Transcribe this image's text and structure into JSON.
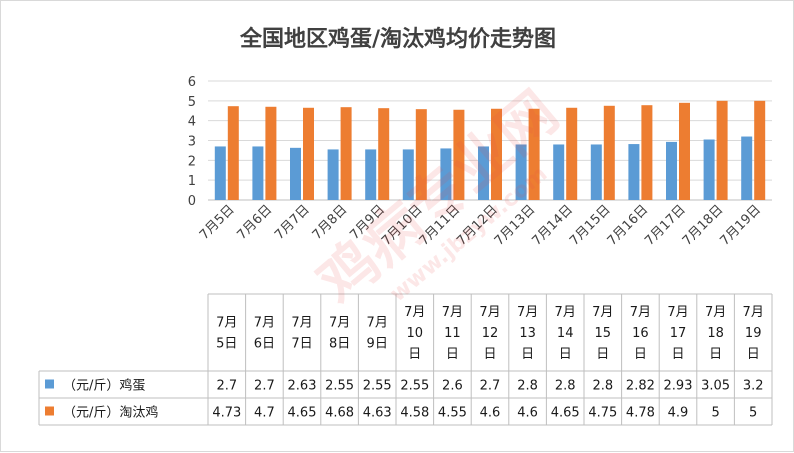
{
  "chart_data": {
    "type": "bar",
    "title": "全国地区鸡蛋/淘汰鸡均价走势图",
    "categories": [
      "7月5日",
      "7月6日",
      "7月7日",
      "7月8日",
      "7月9日",
      "7月10日",
      "7月11日",
      "7月12日",
      "7月13日",
      "7月14日",
      "7月15日",
      "7月16日",
      "7月17日",
      "7月18日",
      "7月19日"
    ],
    "series": [
      {
        "name": "（元/斤）鸡蛋",
        "color": "#5b9bd5",
        "values": [
          2.7,
          2.7,
          2.63,
          2.55,
          2.55,
          2.55,
          2.6,
          2.7,
          2.8,
          2.8,
          2.8,
          2.82,
          2.93,
          3.05,
          3.2
        ]
      },
      {
        "name": "（元/斤）淘汰鸡",
        "color": "#ed7d31",
        "values": [
          4.73,
          4.7,
          4.65,
          4.68,
          4.63,
          4.58,
          4.55,
          4.6,
          4.6,
          4.65,
          4.75,
          4.78,
          4.9,
          5,
          5
        ]
      }
    ],
    "ylim": [
      0,
      6
    ],
    "yticks": [
      0,
      1,
      2,
      3,
      4,
      5,
      6
    ],
    "grid": true,
    "legend": "data-table",
    "data_table": true,
    "xlabel": "",
    "ylabel": ""
  },
  "watermark": {
    "text": "鸡病专业网",
    "url": "www.jbzyw.com",
    "color": "#e94b4b"
  }
}
